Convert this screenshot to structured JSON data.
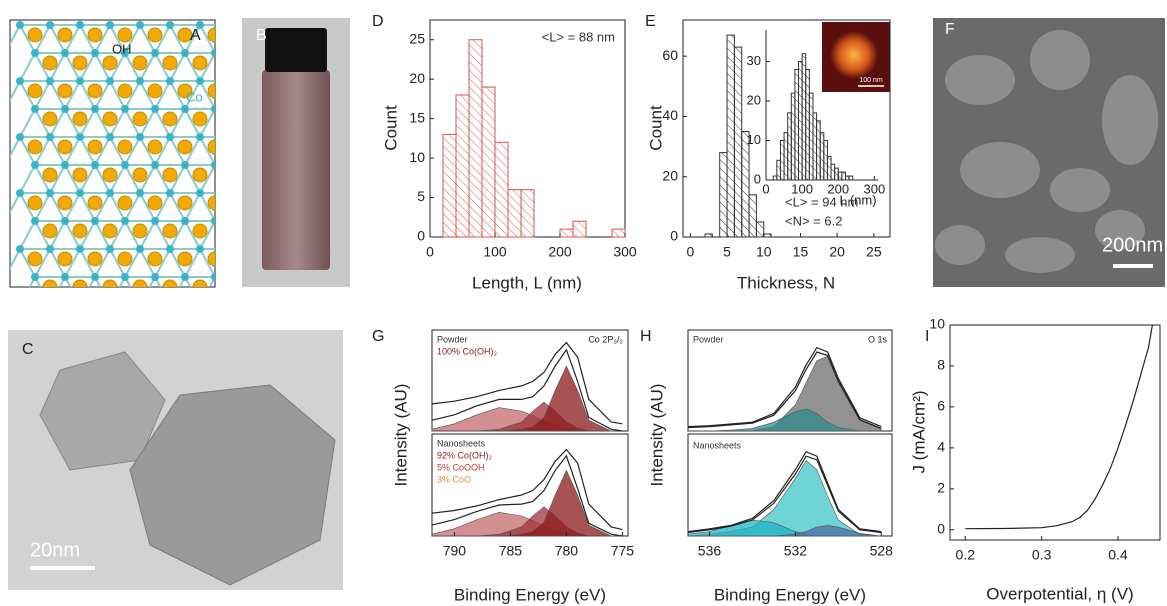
{
  "panels": {
    "A": {
      "label": "A",
      "oh": "OH",
      "co": "Co"
    },
    "B": {
      "label": "B"
    },
    "C": {
      "label": "C",
      "scale_bar": "20nm"
    },
    "F": {
      "label": "F",
      "scale_bar": "200nm"
    },
    "E_inset_image": {
      "scale_bar": "100 nm"
    }
  },
  "chart_data": [
    {
      "type": "histogram",
      "label": "D",
      "xlabel": "Length, L (nm)",
      "ylabel": "Count",
      "color": "#d9534f",
      "bins": [
        20,
        40,
        60,
        80,
        100,
        120,
        140,
        160,
        180,
        200,
        220,
        240,
        260,
        280,
        300
      ],
      "values": [
        13,
        18,
        25,
        19,
        12,
        6,
        6,
        0,
        0,
        1,
        2,
        0,
        0,
        1
      ],
      "xlim": [
        0,
        300
      ],
      "xticks": [
        0,
        100,
        200,
        300
      ],
      "ylim": [
        0,
        27.5
      ],
      "yticks": [
        0,
        5,
        10,
        15,
        20,
        25
      ],
      "annotations": [
        {
          "text": "<L> = 88 nm",
          "color": "#333333"
        }
      ]
    },
    {
      "type": "histogram",
      "label": "E",
      "xlabel": "Thickness, N",
      "ylabel": "Count",
      "color": "#333333",
      "bins": [
        2,
        3,
        4,
        5,
        6,
        7,
        8,
        9,
        10,
        11
      ],
      "values": [
        1,
        0,
        28,
        67,
        63,
        35,
        14,
        5,
        1
      ],
      "xlim": [
        -1,
        27.2
      ],
      "xticks": [
        0,
        5,
        10,
        15,
        20,
        25
      ],
      "ylim": [
        0,
        72
      ],
      "yticks": [
        0,
        20,
        40,
        60
      ],
      "annotations": [
        {
          "text": "<L> = 94 nm",
          "color": "#333333"
        },
        {
          "text": "<N> = 6.2",
          "color": "#333333"
        }
      ]
    },
    {
      "type": "histogram",
      "xlabel": "L (nm)",
      "color": "#333333",
      "bins": [
        20,
        30,
        40,
        50,
        60,
        70,
        80,
        90,
        100,
        110,
        120,
        130,
        140,
        150,
        160,
        170,
        180,
        190,
        200,
        210,
        220,
        230,
        240
      ],
      "values": [
        1,
        5,
        10,
        12,
        17,
        22,
        28,
        30,
        32,
        28,
        22,
        17,
        15,
        12,
        10,
        6,
        4,
        3,
        2,
        2,
        1,
        1
      ],
      "xlim": [
        0,
        310
      ],
      "xticks": [
        0,
        100,
        200,
        300
      ],
      "ylim": [
        0,
        38
      ],
      "yticks": [
        0,
        10,
        20,
        30
      ]
    },
    {
      "type": "line",
      "label": "G",
      "ylabel": "Intensity (AU)",
      "corner_text": "Co 2P₃/₂",
      "x": [
        792,
        790,
        788,
        786,
        784,
        783,
        782,
        781,
        780,
        779,
        778,
        776,
        775
      ],
      "xlim": [
        792,
        774.5
      ],
      "ylim": [
        0,
        1.12
      ],
      "annotations": [
        {
          "text": "Powder",
          "color": "#333333"
        },
        {
          "text": "100% Co(OH)₂",
          "color": "#8b1a1a"
        }
      ],
      "series": [
        {
          "color": "#c46a6e",
          "fill": true,
          "values": [
            0.02,
            0.08,
            0.18,
            0.26,
            0.22,
            0.17,
            0.11,
            0.06,
            0.03,
            0.01,
            0,
            0,
            0
          ]
        },
        {
          "color": "#a0333a",
          "fill": true,
          "values": [
            0,
            0,
            0,
            0.02,
            0.1,
            0.22,
            0.32,
            0.22,
            0.1,
            0.03,
            0,
            0,
            0
          ]
        },
        {
          "color": "#8b1a1a",
          "fill": true,
          "values": [
            0,
            0,
            0,
            0,
            0.02,
            0.05,
            0.15,
            0.45,
            0.72,
            0.45,
            0.12,
            0,
            0
          ]
        },
        {
          "color": "#222222",
          "values": [
            0.12,
            0.18,
            0.28,
            0.35,
            0.35,
            0.38,
            0.5,
            0.72,
            0.9,
            0.55,
            0.15,
            0.02,
            0
          ]
        },
        {
          "color": "#222222",
          "values": [
            0.3,
            0.33,
            0.38,
            0.45,
            0.5,
            0.55,
            0.65,
            0.85,
            0.98,
            0.82,
            0.35,
            0.1,
            0.08
          ]
        }
      ]
    },
    {
      "type": "line",
      "xlabel": "Binding Energy (eV)",
      "x": [
        792,
        790,
        788,
        786,
        784,
        783,
        782,
        781,
        780,
        779,
        778,
        776,
        775
      ],
      "xlim": [
        792,
        774.5
      ],
      "xticks": [
        790,
        785,
        780,
        775
      ],
      "ylim": [
        0,
        1.12
      ],
      "annotations": [
        {
          "text": "Nanosheets",
          "color": "#333333"
        },
        {
          "text": "92% Co(OH)₂",
          "color": "#8b1a1a"
        },
        {
          "text": "5% CoOOH",
          "color": "#c0392b"
        },
        {
          "text": "3% CoO",
          "color": "#d98c3a"
        }
      ],
      "series": [
        {
          "color": "#c46a6e",
          "fill": true,
          "values": [
            0.02,
            0.08,
            0.18,
            0.26,
            0.22,
            0.17,
            0.11,
            0.06,
            0.03,
            0.01,
            0,
            0,
            0
          ]
        },
        {
          "color": "#a0333a",
          "fill": true,
          "values": [
            0,
            0,
            0,
            0.02,
            0.1,
            0.22,
            0.32,
            0.22,
            0.1,
            0.03,
            0,
            0,
            0
          ]
        },
        {
          "color": "#8b1a1a",
          "fill": true,
          "values": [
            0,
            0,
            0,
            0,
            0.02,
            0.05,
            0.15,
            0.45,
            0.72,
            0.45,
            0.12,
            0,
            0
          ]
        },
        {
          "color": "#222222",
          "values": [
            0.12,
            0.18,
            0.27,
            0.34,
            0.35,
            0.38,
            0.5,
            0.72,
            0.88,
            0.52,
            0.14,
            0.02,
            0
          ]
        },
        {
          "color": "#222222",
          "values": [
            0.25,
            0.28,
            0.33,
            0.4,
            0.45,
            0.5,
            0.62,
            0.82,
            0.95,
            0.8,
            0.35,
            0.1,
            0.07
          ]
        }
      ]
    },
    {
      "type": "line",
      "label": "H",
      "ylabel": "Intensity (AU)",
      "corner_text": "O 1s",
      "x": [
        537,
        536,
        535,
        534,
        533,
        532,
        531.5,
        531,
        530.5,
        530,
        529,
        528
      ],
      "xlim": [
        537,
        527.5
      ],
      "ylim": [
        0,
        1.15
      ],
      "annotations": [
        {
          "text": "Powder",
          "color": "#333333"
        }
      ],
      "series": [
        {
          "color": "#6e6e6e",
          "fill": true,
          "values": [
            0,
            0,
            0,
            0,
            0.05,
            0.3,
            0.55,
            0.8,
            0.85,
            0.55,
            0.12,
            0.02
          ]
        },
        {
          "color": "#2e8b8b",
          "fill": true,
          "values": [
            0,
            0,
            0.01,
            0.03,
            0.1,
            0.22,
            0.25,
            0.2,
            0.1,
            0.04,
            0,
            0
          ]
        },
        {
          "color": "#222222",
          "values": [
            0.04,
            0.05,
            0.07,
            0.09,
            0.18,
            0.46,
            0.7,
            0.9,
            0.86,
            0.57,
            0.13,
            0.03
          ]
        },
        {
          "color": "#222222",
          "values": [
            0.05,
            0.06,
            0.08,
            0.1,
            0.2,
            0.5,
            0.75,
            0.95,
            0.9,
            0.6,
            0.15,
            0.05
          ]
        }
      ]
    },
    {
      "type": "line",
      "xlabel": "Binding Energy (eV)",
      "x": [
        537,
        536,
        535,
        534,
        533,
        532,
        531.5,
        531,
        530.5,
        530,
        529,
        528
      ],
      "xlim": [
        537,
        527.5
      ],
      "xticks": [
        536,
        532,
        528
      ],
      "ylim": [
        0,
        1.15
      ],
      "annotations": [
        {
          "text": "Nanosheets",
          "color": "#333333"
        }
      ],
      "series": [
        {
          "color": "#3fc6c8",
          "fill": true,
          "values": [
            0,
            0.02,
            0.05,
            0.1,
            0.3,
            0.65,
            0.85,
            0.75,
            0.45,
            0.18,
            0.02,
            0
          ]
        },
        {
          "color": "#1fb3c4",
          "fill": true,
          "values": [
            0.02,
            0.05,
            0.12,
            0.18,
            0.15,
            0.05,
            0.02,
            0,
            0,
            0,
            0,
            0
          ]
        },
        {
          "color": "#4a6fa5",
          "fill": true,
          "values": [
            0,
            0,
            0,
            0,
            0,
            0.02,
            0.05,
            0.1,
            0.12,
            0.1,
            0.03,
            0
          ]
        },
        {
          "color": "#222222",
          "values": [
            0.04,
            0.07,
            0.11,
            0.18,
            0.37,
            0.7,
            0.9,
            0.86,
            0.57,
            0.28,
            0.07,
            0.04
          ]
        },
        {
          "color": "#222222",
          "values": [
            0.05,
            0.08,
            0.12,
            0.2,
            0.4,
            0.75,
            0.95,
            0.9,
            0.6,
            0.3,
            0.08,
            0.05
          ]
        }
      ]
    },
    {
      "type": "line",
      "label": "I",
      "xlabel": "Overpotential, η (V)",
      "ylabel": "J (mA/cm²)",
      "x": [
        0.2,
        0.25,
        0.3,
        0.32,
        0.34,
        0.35,
        0.36,
        0.37,
        0.38,
        0.39,
        0.4,
        0.41,
        0.42,
        0.43,
        0.44,
        0.445
      ],
      "xlim": [
        0.18,
        0.455
      ],
      "xticks": [
        0.2,
        0.3,
        0.4
      ],
      "ylim": [
        -0.5,
        10
      ],
      "yticks": [
        0,
        2,
        4,
        6,
        8,
        10
      ],
      "series": [
        {
          "color": "#222222",
          "values": [
            0.05,
            0.06,
            0.1,
            0.2,
            0.4,
            0.6,
            0.95,
            1.5,
            2.2,
            3.0,
            4.0,
            5.1,
            6.3,
            7.6,
            8.9,
            10
          ]
        }
      ]
    }
  ]
}
